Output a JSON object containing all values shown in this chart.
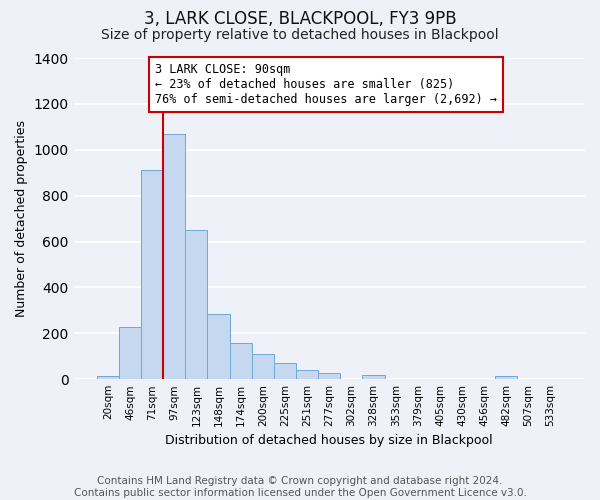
{
  "title": "3, LARK CLOSE, BLACKPOOL, FY3 9PB",
  "subtitle": "Size of property relative to detached houses in Blackpool",
  "xlabel": "Distribution of detached houses by size in Blackpool",
  "ylabel": "Number of detached properties",
  "bar_labels": [
    "20sqm",
    "46sqm",
    "71sqm",
    "97sqm",
    "123sqm",
    "148sqm",
    "174sqm",
    "200sqm",
    "225sqm",
    "251sqm",
    "277sqm",
    "302sqm",
    "328sqm",
    "353sqm",
    "379sqm",
    "405sqm",
    "430sqm",
    "456sqm",
    "482sqm",
    "507sqm",
    "533sqm"
  ],
  "bar_values": [
    15,
    228,
    910,
    1070,
    650,
    285,
    158,
    108,
    72,
    40,
    25,
    0,
    20,
    0,
    0,
    0,
    0,
    0,
    15,
    0,
    0
  ],
  "bar_color": "#c5d8f0",
  "bar_edge_color": "#6fa8d4",
  "ylim": [
    0,
    1400
  ],
  "yticks": [
    0,
    200,
    400,
    600,
    800,
    1000,
    1200,
    1400
  ],
  "property_line_color": "#cc0000",
  "property_line_x": 2.5,
  "annotation_title": "3 LARK CLOSE: 90sqm",
  "annotation_line1": "← 23% of detached houses are smaller (825)",
  "annotation_line2": "76% of semi-detached houses are larger (2,692) →",
  "annotation_box_color": "#ffffff",
  "annotation_box_edge_color": "#cc0000",
  "footer_line1": "Contains HM Land Registry data © Crown copyright and database right 2024.",
  "footer_line2": "Contains public sector information licensed under the Open Government Licence v3.0.",
  "background_color": "#eef2f8",
  "plot_bg_color": "#eef2f8",
  "grid_color": "#ffffff",
  "title_fontsize": 12,
  "subtitle_fontsize": 10,
  "axis_label_fontsize": 9,
  "tick_fontsize": 7.5,
  "footer_fontsize": 7.5,
  "ann_fontsize": 8.5
}
